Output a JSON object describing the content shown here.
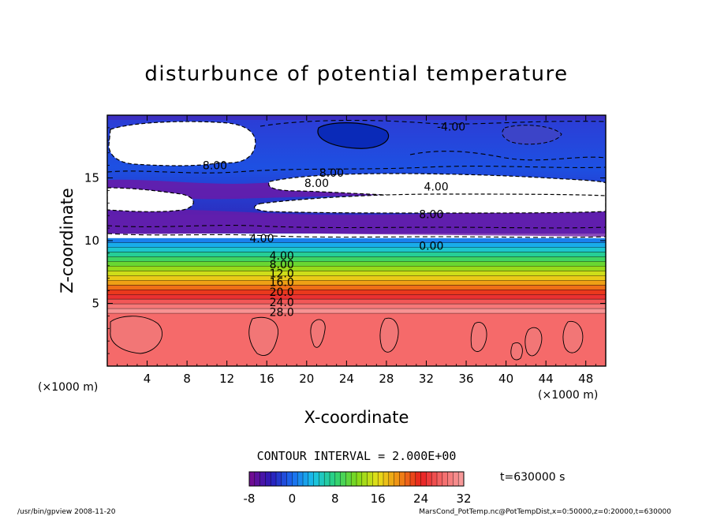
{
  "chart_data": {
    "type": "heatmap",
    "title": "disturbunce of potential temperature",
    "xlabel": "X-coordinate",
    "ylabel": "Z-coordinate",
    "x_unit_left": "(×1000 m)",
    "x_unit_right": "(×1000 m)",
    "xlim": [
      0,
      50
    ],
    "ylim": [
      0,
      20
    ],
    "x_ticks": [
      4,
      8,
      12,
      16,
      20,
      24,
      28,
      32,
      36,
      40,
      44,
      48
    ],
    "y_ticks": [
      5,
      10,
      15
    ],
    "contour_interval_text": "CONTOUR INTERVAL = 2.000E+00",
    "time_text": "t=630000 s",
    "colorbar": {
      "min": -8,
      "max": 32,
      "ticks": [
        -8,
        0,
        8,
        16,
        24,
        32
      ],
      "colors": [
        "#7a0a8e",
        "#2a1ab8",
        "#1a6af0",
        "#19c2e8",
        "#2ad27a",
        "#7ed81a",
        "#e8e019",
        "#f08a14",
        "#e81e1e",
        "#f56a6a",
        "#f7a0a0"
      ]
    },
    "contour_labels": [
      {
        "text": "-4.00",
        "x": 34.5,
        "z": 19.1
      },
      {
        "text": "8.00",
        "x": 10.8,
        "z": 16.0
      },
      {
        "text": "8.00",
        "x": 22.5,
        "z": 15.4
      },
      {
        "text": "8.00",
        "x": 21.0,
        "z": 14.6
      },
      {
        "text": "4.00",
        "x": 33.0,
        "z": 14.3
      },
      {
        "text": "8.00",
        "x": 32.5,
        "z": 12.1
      },
      {
        "text": "4.00",
        "x": 15.5,
        "z": 10.2
      },
      {
        "text": "0.00",
        "x": 32.5,
        "z": 9.6
      },
      {
        "text": "4.00",
        "x": 17.5,
        "z": 8.8
      },
      {
        "text": "8.00",
        "x": 17.5,
        "z": 8.1
      },
      {
        "text": "12.0",
        "x": 17.5,
        "z": 7.4
      },
      {
        "text": "16.0",
        "x": 17.5,
        "z": 6.7
      },
      {
        "text": "20.0",
        "x": 17.5,
        "z": 5.9
      },
      {
        "text": "24.0",
        "x": 17.5,
        "z": 5.1
      },
      {
        "text": "28.0",
        "x": 17.5,
        "z": 4.3
      }
    ]
  },
  "footer": {
    "left": "/usr/bin/gpview   2008-11-20",
    "right": "MarsCond_PotTemp.nc@PotTempDist,x=0:50000,z=0:20000,t=630000"
  }
}
